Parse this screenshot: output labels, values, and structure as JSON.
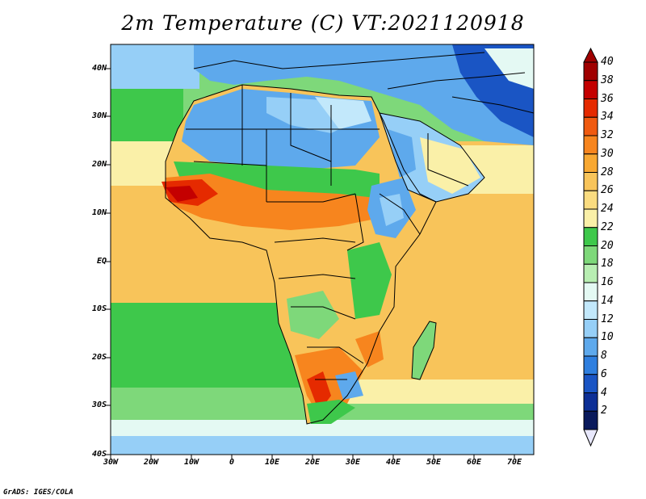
{
  "title": "2m Temperature (C) VT:2021120918",
  "credit": "GrADS: IGES/COLA",
  "lat_labels": [
    "40N",
    "30N",
    "20N",
    "10N",
    "EQ",
    "10S",
    "20S",
    "30S",
    "40S"
  ],
  "lon_labels": [
    "30W",
    "20W",
    "10W",
    "0",
    "10E",
    "20E",
    "30E",
    "40E",
    "50E",
    "60E",
    "70E"
  ],
  "colorbar": {
    "labels": [
      "40",
      "38",
      "36",
      "34",
      "32",
      "30",
      "28",
      "26",
      "24",
      "22",
      "20",
      "18",
      "16",
      "14",
      "12",
      "10",
      "8",
      "6",
      "4",
      "2"
    ],
    "colors": [
      "#a00000",
      "#c40000",
      "#e52a00",
      "#f05a10",
      "#f7851e",
      "#f8a832",
      "#f8c45a",
      "#fadc80",
      "#faf0a8",
      "#3ec84b",
      "#7ed87a",
      "#b8eeb2",
      "#e4f9f3",
      "#c2e8fb",
      "#96cff7",
      "#5ea9ec",
      "#2f7fdf",
      "#1a55c4",
      "#0d2f96",
      "#0a1a5c"
    ]
  },
  "map": {
    "ocean_colors": {
      "tropical": "#f8c45a",
      "subtropical": "#faf0a8",
      "mid": "#7ed87a",
      "cool": "#b8eeb2",
      "cold": "#c2e8fb"
    },
    "land_colors": {
      "hot": "#e52a00",
      "warm": "#f7851e",
      "mild": "#f8c45a",
      "green": "#3ec84b",
      "cool": "#5ea9ec",
      "cold": "#1a55c4"
    }
  }
}
